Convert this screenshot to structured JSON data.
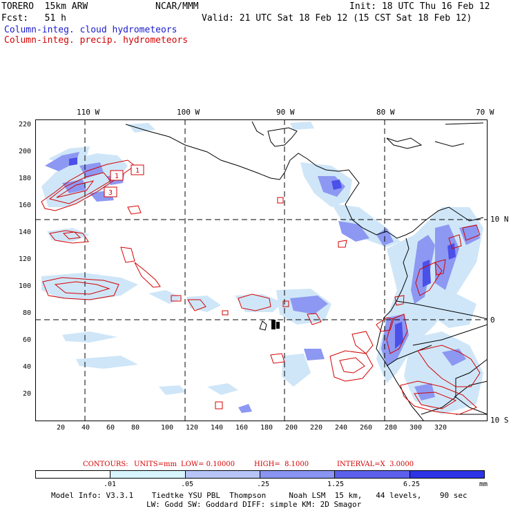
{
  "header": {
    "line1_left": "TORERO  15km ARW",
    "line1_mid": "NCAR/MMM",
    "line1_right": "Init: 18 UTC Thu 16 Feb 12",
    "line2_left": "Fcst:   51 h",
    "line2_right": "Valid: 21 UTC Sat 18 Feb 12 (15 CST Sat 18 Feb 12)",
    "cloud_label": "Column-integ. cloud hydrometeors",
    "precip_label": "Column-integ. precip. hydrometeors"
  },
  "top_axis": {
    "labels": [
      "110 W",
      "100 W",
      "90 W",
      "80 W",
      "70 W"
    ]
  },
  "right_axis": {
    "labels": [
      "10 N",
      "0",
      "10 S"
    ]
  },
  "left_axis": {
    "labels": [
      "220",
      "200",
      "180",
      "160",
      "140",
      "120",
      "100",
      "80",
      "60",
      "40",
      "20"
    ]
  },
  "bottom_axis": {
    "labels": [
      "20",
      "40",
      "60",
      "80",
      "100",
      "120",
      "140",
      "160",
      "180",
      "200",
      "220",
      "240",
      "260",
      "280",
      "300",
      "320"
    ]
  },
  "contour_labels": [
    "1",
    "1",
    "3"
  ],
  "contours_info": {
    "label": "CONTOURS:",
    "units": "UNITS=mm",
    "low": "LOW= 0.10000",
    "high": "HIGH=  8.1000",
    "interval": "INTERVAL=X  3.0000"
  },
  "colorbar": {
    "labels": [
      ".01",
      ".05",
      ".25",
      "1.25",
      "6.25"
    ],
    "unit": "mm",
    "colors": [
      "#ffffff",
      "#d8f4fc",
      "#b6c4f8",
      "#8a94f2",
      "#5c60ec",
      "#2e34e6",
      "#1818e0"
    ]
  },
  "model_info": {
    "line1": "Model Info: V3.3.1    Tiedtke YSU PBL  Thompson     Noah LSM  15 km,   44 levels,    90 sec",
    "line2": "LW: Godd SW: Goddard DIFF: simple KM: 2D Smagor"
  },
  "colors": {
    "cloud": "#1a1acc",
    "precip": "#d40000"
  }
}
